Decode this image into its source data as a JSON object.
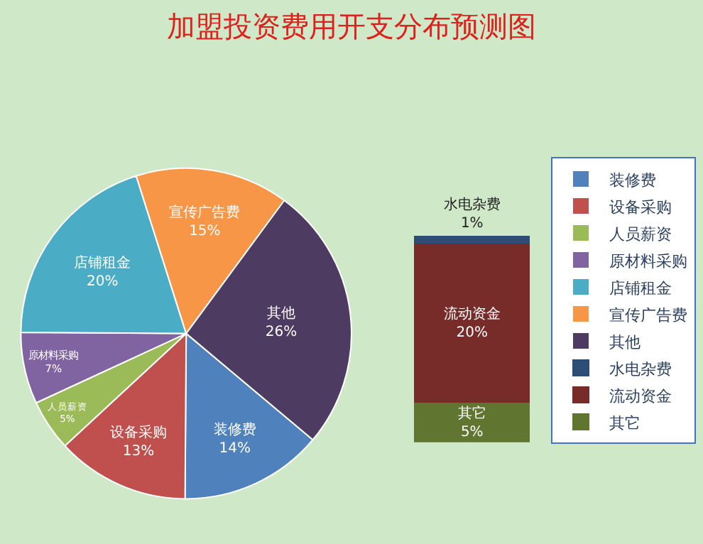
{
  "chart_data": [
    {
      "type": "pie",
      "title": "加盟投资费用开支分布预测图",
      "legend": "right",
      "categories": [
        "装修费",
        "设备采购",
        "人员薪资",
        "原材料采购",
        "店铺租金",
        "宣传广告费",
        "其他"
      ],
      "values": [
        14,
        13,
        5,
        7,
        20,
        15,
        26
      ],
      "value_labels": [
        "14%",
        "13%",
        "5%",
        "7%",
        "20%",
        "15%",
        "26%"
      ],
      "colors": [
        "#4f81bd",
        "#c0504d",
        "#9bbb59",
        "#8064a2",
        "#4bacc6",
        "#f79646",
        "#4d3b62"
      ]
    },
    {
      "type": "bar",
      "stacked": true,
      "legend": "right",
      "categories": [
        null
      ],
      "series": [
        {
          "name": "其它",
          "color": "#5f7530",
          "values": [
            5
          ],
          "value_labels": [
            "5%"
          ]
        },
        {
          "name": "流动资金",
          "color": "#772c2a",
          "values": [
            20
          ],
          "value_labels": [
            "20%"
          ]
        },
        {
          "name": "水电杂费",
          "color": "#2c4d75",
          "values": [
            1
          ],
          "value_labels": [
            "1%"
          ]
        }
      ]
    }
  ]
}
